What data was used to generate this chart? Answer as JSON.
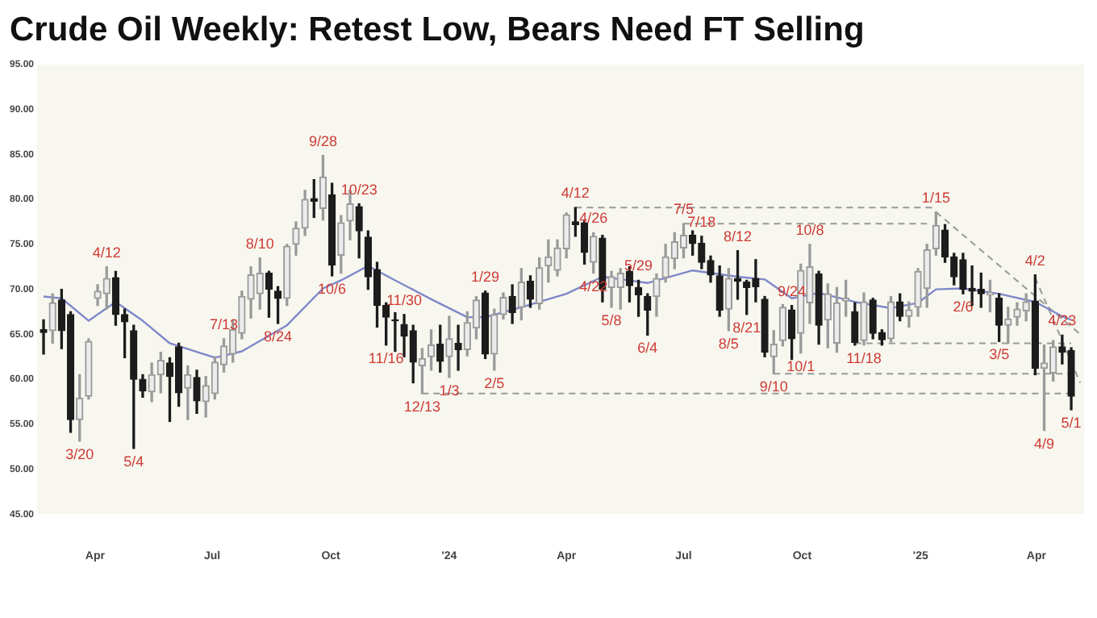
{
  "chart_data": {
    "type": "candlestick",
    "title": "Crude Oil Weekly: Retest Low, Bears Need FT Selling",
    "x": [
      "2023-02-20",
      "2023-02-27",
      "2023-03-06",
      "2023-03-13",
      "2023-03-20",
      "2023-03-27",
      "2023-04-03",
      "2023-04-10",
      "2023-04-17",
      "2023-04-24",
      "2023-05-01",
      "2023-05-08",
      "2023-05-15",
      "2023-05-22",
      "2023-05-29",
      "2023-06-05",
      "2023-06-12",
      "2023-06-19",
      "2023-06-26",
      "2023-07-03",
      "2023-07-10",
      "2023-07-17",
      "2023-07-24",
      "2023-07-31",
      "2023-08-07",
      "2023-08-14",
      "2023-08-21",
      "2023-08-28",
      "2023-09-04",
      "2023-09-11",
      "2023-09-18",
      "2023-09-25",
      "2023-10-02",
      "2023-10-09",
      "2023-10-16",
      "2023-10-23",
      "2023-10-30",
      "2023-11-06",
      "2023-11-13",
      "2023-11-20",
      "2023-11-27",
      "2023-12-04",
      "2023-12-11",
      "2023-12-18",
      "2023-12-25",
      "2024-01-01",
      "2024-01-08",
      "2024-01-15",
      "2024-01-22",
      "2024-01-29",
      "2024-02-05",
      "2024-02-12",
      "2024-02-19",
      "2024-02-26",
      "2024-03-04",
      "2024-03-11",
      "2024-03-18",
      "2024-03-25",
      "2024-04-01",
      "2024-04-08",
      "2024-04-15",
      "2024-04-22",
      "2024-04-29",
      "2024-05-06",
      "2024-05-13",
      "2024-05-20",
      "2024-05-27",
      "2024-06-03",
      "2024-06-10",
      "2024-06-17",
      "2024-06-24",
      "2024-07-01",
      "2024-07-08",
      "2024-07-15",
      "2024-07-22",
      "2024-07-29",
      "2024-08-05",
      "2024-08-12",
      "2024-08-19",
      "2024-08-26",
      "2024-09-02",
      "2024-09-09",
      "2024-09-16",
      "2024-09-23",
      "2024-09-30",
      "2024-10-07",
      "2024-10-14",
      "2024-10-21",
      "2024-10-28",
      "2024-11-04",
      "2024-11-11",
      "2024-11-18",
      "2024-11-25",
      "2024-12-02",
      "2024-12-09",
      "2024-12-16",
      "2024-12-23",
      "2024-12-30",
      "2025-01-06",
      "2025-01-13",
      "2025-01-20",
      "2025-01-27",
      "2025-02-03",
      "2025-02-10",
      "2025-02-17",
      "2025-02-24",
      "2025-03-03",
      "2025-03-10",
      "2025-03-17",
      "2025-03-24",
      "2025-03-31",
      "2025-04-07",
      "2025-04-14",
      "2025-04-21",
      "2025-04-28"
    ],
    "ohlc": [
      [
        65.5,
        66.6,
        62.8,
        65.2
      ],
      [
        65.4,
        69.5,
        64.0,
        68.5
      ],
      [
        68.8,
        70.0,
        63.4,
        65.4
      ],
      [
        67.2,
        67.5,
        54.1,
        55.5
      ],
      [
        55.5,
        60.5,
        53.1,
        57.9
      ],
      [
        58.1,
        64.5,
        57.8,
        64.2
      ],
      [
        69.0,
        70.5,
        68.2,
        69.8
      ],
      [
        69.5,
        72.5,
        67.8,
        71.2
      ],
      [
        71.3,
        72.0,
        66.0,
        67.2
      ],
      [
        67.2,
        67.8,
        62.4,
        66.4
      ],
      [
        65.4,
        66.0,
        52.3,
        60.0
      ],
      [
        60.0,
        60.5,
        58.0,
        58.7
      ],
      [
        58.6,
        61.8,
        57.5,
        60.5
      ],
      [
        60.5,
        63.0,
        58.5,
        62.1
      ],
      [
        61.8,
        62.4,
        55.3,
        60.3
      ],
      [
        63.6,
        64.0,
        57.0,
        58.5
      ],
      [
        59.0,
        61.5,
        55.5,
        60.5
      ],
      [
        60.2,
        61.0,
        56.2,
        57.6
      ],
      [
        57.5,
        60.3,
        55.8,
        59.3
      ],
      [
        58.4,
        62.5,
        57.8,
        61.9
      ],
      [
        61.6,
        64.5,
        60.8,
        63.7
      ],
      [
        62.8,
        66.5,
        61.9,
        65.5
      ],
      [
        65.1,
        69.8,
        64.5,
        69.2
      ],
      [
        68.9,
        72.5,
        66.8,
        71.6
      ],
      [
        69.5,
        73.5,
        67.8,
        71.8
      ],
      [
        71.8,
        72.0,
        66.9,
        70.0
      ],
      [
        69.8,
        70.3,
        66.2,
        69.0
      ],
      [
        69.0,
        75.0,
        68.2,
        74.8
      ],
      [
        75.0,
        77.5,
        73.8,
        76.8
      ],
      [
        76.8,
        81.0,
        76.0,
        80.0
      ],
      [
        80.1,
        82.2,
        78.0,
        79.8
      ],
      [
        79.0,
        84.9,
        77.7,
        82.5
      ],
      [
        80.5,
        81.8,
        71.5,
        72.7
      ],
      [
        73.8,
        78.2,
        71.8,
        77.4
      ],
      [
        77.6,
        81.0,
        75.5,
        79.5
      ],
      [
        79.2,
        79.5,
        73.5,
        76.5
      ],
      [
        75.8,
        76.5,
        70.0,
        71.4
      ],
      [
        72.2,
        73.0,
        65.8,
        68.2
      ],
      [
        68.2,
        68.5,
        63.8,
        66.9
      ],
      [
        66.6,
        67.4,
        63.1,
        66.5
      ],
      [
        66.1,
        67.2,
        62.5,
        64.8
      ],
      [
        65.4,
        66.0,
        59.6,
        61.9
      ],
      [
        61.5,
        63.4,
        58.4,
        62.3
      ],
      [
        62.5,
        65.5,
        61.0,
        63.8
      ],
      [
        63.9,
        66.0,
        60.8,
        62.0
      ],
      [
        62.5,
        67.0,
        60.2,
        64.5
      ],
      [
        64.0,
        66.0,
        61.0,
        63.3
      ],
      [
        63.3,
        67.5,
        62.6,
        66.3
      ],
      [
        65.7,
        69.2,
        64.5,
        68.8
      ],
      [
        69.6,
        69.8,
        62.3,
        62.8
      ],
      [
        62.8,
        67.8,
        61.0,
        67.2
      ],
      [
        67.2,
        69.6,
        66.7,
        69.1
      ],
      [
        69.2,
        70.5,
        66.2,
        67.4
      ],
      [
        68.0,
        72.3,
        66.6,
        70.8
      ],
      [
        70.9,
        71.5,
        68.0,
        68.9
      ],
      [
        68.4,
        73.5,
        67.8,
        72.4
      ],
      [
        72.6,
        75.5,
        70.8,
        73.6
      ],
      [
        72.1,
        75.5,
        71.5,
        74.6
      ],
      [
        74.5,
        78.5,
        73.5,
        78.3
      ],
      [
        77.5,
        79.1,
        75.9,
        77.2
      ],
      [
        77.4,
        77.6,
        72.8,
        74.1
      ],
      [
        73.0,
        76.3,
        71.8,
        75.9
      ],
      [
        75.7,
        76.0,
        68.6,
        70.0
      ],
      [
        70.2,
        72.0,
        68.0,
        71.4
      ],
      [
        70.2,
        72.3,
        67.8,
        71.8
      ],
      [
        72.0,
        72.5,
        68.6,
        70.4
      ],
      [
        70.2,
        71.0,
        67.0,
        69.4
      ],
      [
        69.2,
        69.5,
        64.9,
        67.7
      ],
      [
        69.2,
        71.7,
        67.0,
        71.2
      ],
      [
        71.3,
        75.0,
        70.8,
        73.6
      ],
      [
        73.4,
        76.3,
        72.3,
        75.3
      ],
      [
        74.6,
        77.3,
        73.5,
        76.0
      ],
      [
        76.0,
        76.5,
        73.8,
        75.1
      ],
      [
        75.1,
        75.9,
        72.3,
        73.0
      ],
      [
        73.2,
        73.7,
        70.8,
        71.6
      ],
      [
        71.5,
        72.6,
        67.0,
        67.7
      ],
      [
        67.8,
        72.3,
        65.4,
        71.2
      ],
      [
        71.2,
        74.3,
        68.9,
        70.9
      ],
      [
        70.8,
        71.0,
        67.2,
        70.2
      ],
      [
        71.2,
        73.3,
        68.6,
        70.3
      ],
      [
        68.9,
        69.2,
        62.5,
        63.0
      ],
      [
        62.5,
        65.4,
        60.6,
        63.9
      ],
      [
        64.3,
        68.3,
        63.7,
        68.0
      ],
      [
        67.7,
        68.2,
        62.2,
        64.5
      ],
      [
        65.1,
        72.8,
        62.9,
        72.1
      ],
      [
        68.5,
        75.0,
        66.2,
        72.5
      ],
      [
        71.7,
        72.0,
        63.9,
        66.0
      ],
      [
        66.6,
        70.6,
        63.5,
        69.5
      ],
      [
        64.0,
        70.2,
        63.0,
        68.5
      ],
      [
        68.7,
        71.0,
        67.0,
        69.0
      ],
      [
        67.5,
        68.5,
        63.8,
        64.1
      ],
      [
        64.3,
        69.6,
        63.8,
        68.6
      ],
      [
        68.8,
        69.0,
        64.5,
        65.1
      ],
      [
        65.2,
        65.5,
        63.8,
        64.4
      ],
      [
        64.5,
        69.2,
        64.2,
        68.6
      ],
      [
        68.6,
        69.5,
        66.5,
        67.0
      ],
      [
        67.0,
        68.6,
        65.8,
        67.7
      ],
      [
        68.0,
        72.3,
        67.0,
        72.0
      ],
      [
        70.1,
        75.0,
        68.0,
        74.4
      ],
      [
        74.5,
        78.6,
        73.8,
        77.1
      ],
      [
        76.6,
        77.2,
        73.0,
        73.6
      ],
      [
        73.6,
        74.0,
        70.5,
        71.4
      ],
      [
        73.3,
        74.0,
        69.5,
        70.0
      ],
      [
        70.1,
        72.6,
        68.2,
        69.8
      ],
      [
        70.0,
        71.8,
        68.0,
        69.5
      ],
      [
        69.4,
        71.0,
        67.5,
        69.6
      ],
      [
        69.0,
        69.5,
        64.2,
        66.0
      ],
      [
        66.0,
        68.0,
        64.0,
        66.7
      ],
      [
        66.9,
        68.5,
        66.0,
        67.8
      ],
      [
        67.6,
        69.5,
        66.5,
        68.6
      ],
      [
        68.7,
        71.6,
        60.5,
        61.2
      ],
      [
        61.2,
        63.8,
        54.3,
        61.8
      ],
      [
        60.7,
        64.3,
        59.8,
        63.6
      ],
      [
        63.6,
        64.9,
        61.7,
        63.0
      ],
      [
        63.2,
        63.5,
        56.6,
        58.1
      ]
    ],
    "series": [
      {
        "type": "line",
        "color": "#7f88c8",
        "x": [
          "2023-02-20",
          "2023-03-06",
          "2023-03-27",
          "2023-04-17",
          "2023-05-08",
          "2023-05-29",
          "2023-07-03",
          "2023-07-24",
          "2023-08-28",
          "2023-09-25",
          "2023-10-09",
          "2023-10-30",
          "2023-11-20",
          "2023-12-18",
          "2024-01-15",
          "2024-01-29",
          "2024-02-26",
          "2024-04-01",
          "2024-04-29",
          "2024-06-03",
          "2024-07-08",
          "2024-08-12",
          "2024-09-02",
          "2024-09-23",
          "2024-10-14",
          "2024-11-11",
          "2024-12-09",
          "2024-12-30",
          "2025-01-13",
          "2025-02-03",
          "2025-03-03",
          "2025-03-31",
          "2025-04-21",
          "2025-04-28"
        ],
        "values": [
          69.2,
          69.0,
          66.5,
          68.6,
          66.5,
          64.0,
          62.4,
          63.1,
          66.0,
          70.1,
          71.0,
          72.6,
          71.0,
          68.9,
          66.9,
          66.9,
          68.0,
          69.5,
          71.4,
          70.7,
          72.1,
          71.4,
          71.1,
          69.0,
          69.6,
          68.6,
          67.9,
          68.5,
          70.0,
          70.1,
          69.5,
          68.6,
          67.0,
          66.6
        ]
      },
      {
        "type": "line",
        "color": "#999999",
        "line_style": "dashed",
        "x": [
          "2024-04-08",
          "2025-01-13"
        ],
        "values": [
          79.1,
          79.1
        ]
      },
      {
        "type": "line",
        "color": "#999999",
        "line_style": "dashed",
        "x": [
          "2024-07-01",
          "2025-01-06"
        ],
        "values": [
          77.3,
          77.3
        ]
      },
      {
        "type": "line",
        "color": "#999999",
        "line_style": "dashed",
        "x": [
          "2023-12-11",
          "2025-04-28"
        ],
        "values": [
          58.4,
          58.4
        ]
      },
      {
        "type": "line",
        "color": "#999999",
        "line_style": "dashed",
        "x": [
          "2024-09-09",
          "2025-04-28"
        ],
        "values": [
          60.6,
          60.6
        ]
      },
      {
        "type": "line",
        "color": "#999999",
        "line_style": "dashed",
        "x": [
          "2024-11-11",
          "2025-04-28"
        ],
        "values": [
          64.0,
          64.0
        ]
      },
      {
        "type": "line",
        "color": "#999999",
        "line_style": "dashed",
        "x": [
          "2025-01-13",
          "2025-05-05"
        ],
        "values": [
          78.6,
          65.0
        ]
      },
      {
        "type": "line",
        "color": "#999999",
        "line_style": "dashed",
        "x": [
          "2025-03-31",
          "2025-05-05"
        ],
        "values": [
          71.3,
          59.6
        ]
      }
    ],
    "xlim": [
      "2023-02-15",
      "2025-05-08"
    ],
    "xticks": [
      {
        "value": "2023-04-01",
        "label": "Apr"
      },
      {
        "value": "2023-07-01",
        "label": "Jul"
      },
      {
        "value": "2023-10-01",
        "label": "Oct"
      },
      {
        "value": "2024-01-01",
        "label": "'24"
      },
      {
        "value": "2024-04-01",
        "label": "Apr"
      },
      {
        "value": "2024-07-01",
        "label": "Jul"
      },
      {
        "value": "2024-10-01",
        "label": "Oct"
      },
      {
        "value": "2025-01-01",
        "label": "'25"
      },
      {
        "value": "2025-04-01",
        "label": "Apr"
      }
    ],
    "ylim": [
      45,
      95
    ],
    "yticks": [
      {
        "value": 45,
        "label": "45.00"
      },
      {
        "value": 50,
        "label": "50.00"
      },
      {
        "value": 55,
        "label": "55.00"
      },
      {
        "value": 60,
        "label": "60.00"
      },
      {
        "value": 65,
        "label": "65.00"
      },
      {
        "value": 70,
        "label": "70.00"
      },
      {
        "value": 75,
        "label": "75.00"
      },
      {
        "value": 80,
        "label": "80.00"
      },
      {
        "value": 85,
        "label": "85.00"
      },
      {
        "value": 90,
        "label": "90.00"
      },
      {
        "value": 95,
        "label": "95.00"
      }
    ],
    "annotations": [
      {
        "text": "3/20",
        "x": "2023-03-20",
        "y": 53.1
      },
      {
        "text": "4/12",
        "x": "2023-04-10",
        "y": 72.5
      },
      {
        "text": "5/4",
        "x": "2023-05-01",
        "y": 52.3
      },
      {
        "text": "7/13",
        "x": "2023-07-10",
        "y": 64.5
      },
      {
        "text": "8/10",
        "x": "2023-08-07",
        "y": 73.5
      },
      {
        "text": "8/24",
        "x": "2023-08-21",
        "y": 66.2
      },
      {
        "text": "9/28",
        "x": "2023-09-25",
        "y": 84.9
      },
      {
        "text": "10/6",
        "x": "2023-10-02",
        "y": 71.5
      },
      {
        "text": "10/23",
        "x": "2023-10-23",
        "y": 79.5
      },
      {
        "text": "11/16",
        "x": "2023-11-13",
        "y": 63.8
      },
      {
        "text": "11/30",
        "x": "2023-11-27",
        "y": 67.2
      },
      {
        "text": "12/13",
        "x": "2023-12-11",
        "y": 58.4
      },
      {
        "text": "1/3",
        "x": "2024-01-01",
        "y": 60.2
      },
      {
        "text": "1/29",
        "x": "2024-01-29",
        "y": 69.8
      },
      {
        "text": "2/5",
        "x": "2024-02-05",
        "y": 61.0
      },
      {
        "text": "4/12",
        "x": "2024-04-08",
        "y": 79.1
      },
      {
        "text": "4/26",
        "x": "2024-04-22",
        "y": 76.3
      },
      {
        "text": "4/22",
        "x": "2024-04-22",
        "y": 71.8
      },
      {
        "text": "5/29",
        "x": "2024-05-27",
        "y": 71.0
      },
      {
        "text": "5/8",
        "x": "2024-05-06",
        "y": 68.0
      },
      {
        "text": "6/4",
        "x": "2024-06-03",
        "y": 64.9
      },
      {
        "text": "7/5",
        "x": "2024-07-01",
        "y": 77.3
      },
      {
        "text": "7/18",
        "x": "2024-07-15",
        "y": 75.9
      },
      {
        "text": "8/12",
        "x": "2024-08-12",
        "y": 74.3
      },
      {
        "text": "8/5",
        "x": "2024-08-05",
        "y": 65.4
      },
      {
        "text": "8/21",
        "x": "2024-08-19",
        "y": 67.2
      },
      {
        "text": "9/24",
        "x": "2024-09-23",
        "y": 68.2
      },
      {
        "text": "9/10",
        "x": "2024-09-09",
        "y": 60.6
      },
      {
        "text": "10/1",
        "x": "2024-09-30",
        "y": 62.9
      },
      {
        "text": "10/8",
        "x": "2024-10-07",
        "y": 75.0
      },
      {
        "text": "11/18",
        "x": "2024-11-18",
        "y": 63.8
      },
      {
        "text": "1/15",
        "x": "2025-01-13",
        "y": 78.6
      },
      {
        "text": "2/6",
        "x": "2025-02-03",
        "y": 69.5
      },
      {
        "text": "3/5",
        "x": "2025-03-03",
        "y": 64.2
      },
      {
        "text": "4/2",
        "x": "2025-03-31",
        "y": 71.6
      },
      {
        "text": "4/23",
        "x": "2025-04-21",
        "y": 64.9
      },
      {
        "text": "4/9",
        "x": "2025-04-07",
        "y": 54.3
      },
      {
        "text": "5/1",
        "x": "2025-04-28",
        "y": 56.6
      }
    ]
  }
}
